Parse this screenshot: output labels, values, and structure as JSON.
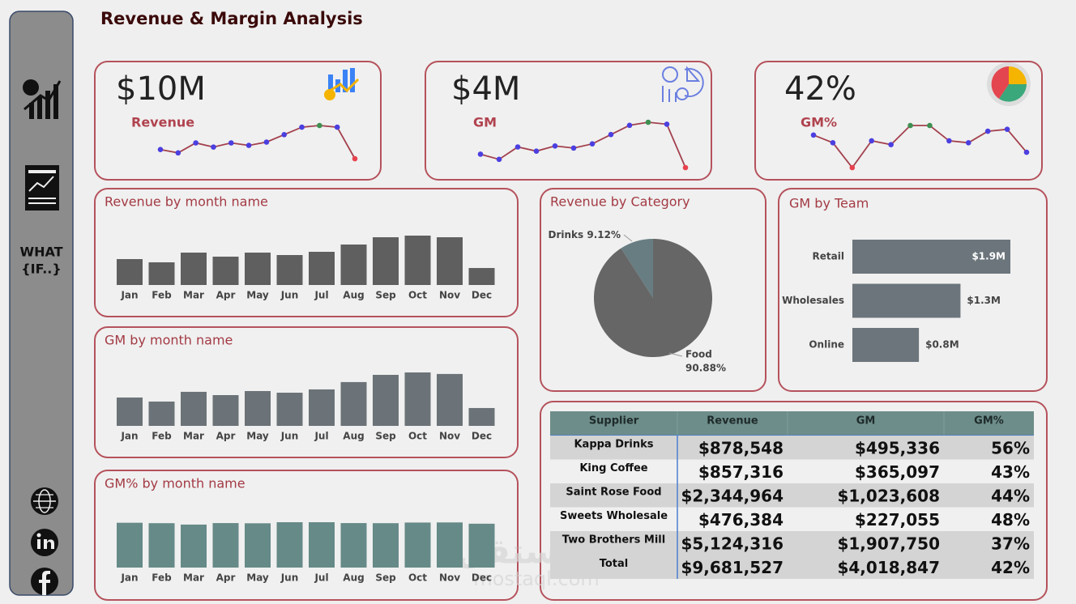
{
  "title": "Revenue & Margin Analysis",
  "sidebar": {
    "what_if": [
      "WHAT",
      "{IF..}"
    ]
  },
  "kpis": [
    {
      "value": "$10M",
      "label": "Revenue"
    },
    {
      "value": "$4M",
      "label": "GM"
    },
    {
      "value": "42%",
      "label": "GM%"
    }
  ],
  "sparkline": {
    "line_color": "#a3404d",
    "point_color": "#4b3fe0",
    "max_color": "#3f8f52",
    "min_color": "#e8424f"
  },
  "chart_data": [
    {
      "type": "bar",
      "title": "Revenue by month name",
      "categories": [
        "Jan",
        "Feb",
        "Mar",
        "Apr",
        "May",
        "Jun",
        "Jul",
        "Aug",
        "Sep",
        "Oct",
        "Nov",
        "Dec"
      ],
      "values": [
        616000,
        539000,
        770000,
        674000,
        770000,
        712000,
        789000,
        962000,
        1135000,
        1174000,
        1135000,
        404000
      ],
      "color": "#5f5f5f"
    },
    {
      "type": "bar",
      "title": "GM by month name",
      "categories": [
        "Jan",
        "Feb",
        "Mar",
        "Apr",
        "May",
        "Jun",
        "Jul",
        "Aug",
        "Sep",
        "Oct",
        "Nov",
        "Dec"
      ],
      "values": [
        259000,
        222000,
        311000,
        281000,
        318000,
        303000,
        333000,
        400000,
        466000,
        488000,
        474000,
        163000
      ],
      "color": "#6b7378"
    },
    {
      "type": "bar",
      "title": "GM% by month name",
      "categories": [
        "Jan",
        "Feb",
        "Mar",
        "Apr",
        "May",
        "Jun",
        "Jul",
        "Aug",
        "Sep",
        "Oct",
        "Nov",
        "Dec"
      ],
      "values": [
        42.0,
        41.6,
        40.3,
        41.7,
        41.5,
        42.5,
        42.5,
        41.7,
        41.6,
        42.2,
        42.3,
        41.1
      ],
      "color": "#668a87"
    },
    {
      "type": "pie",
      "title": "Revenue by Category",
      "categories": [
        "Drinks",
        "Food"
      ],
      "values": [
        9.12,
        90.88
      ],
      "value_labels": [
        "9.12%",
        "90.88%"
      ],
      "colors": [
        "#687d82",
        "#666666"
      ]
    },
    {
      "type": "bar",
      "orientation": "horizontal",
      "title": "GM by Team",
      "categories": [
        "Retail",
        "Wholesales",
        "Online"
      ],
      "values": [
        1900000,
        1300000,
        800000
      ],
      "value_labels": [
        "$1.9M",
        "$1.3M",
        "$0.8M"
      ],
      "color": "#6b757b"
    }
  ],
  "table": {
    "header": [
      "Supplier",
      "Revenue",
      "GM",
      "GM%"
    ],
    "rows": [
      [
        "Kappa Drinks",
        "$878,548",
        "$495,336",
        "56%"
      ],
      [
        "King Coffee",
        "$857,316",
        "$365,097",
        "43%"
      ],
      [
        "Saint Rose Food",
        "$2,344,964",
        "$1,023,608",
        "44%"
      ],
      [
        "Sweets Wholesale",
        "$476,384",
        "$227,055",
        "48%"
      ],
      [
        "Two Brothers Mill",
        "$5,124,316",
        "$1,907,750",
        "37%"
      ],
      [
        "Total",
        "$9,681,527",
        "$4,018,847",
        "42%"
      ]
    ]
  },
  "watermark": [
    "مستقل",
    "mostaql.com"
  ]
}
